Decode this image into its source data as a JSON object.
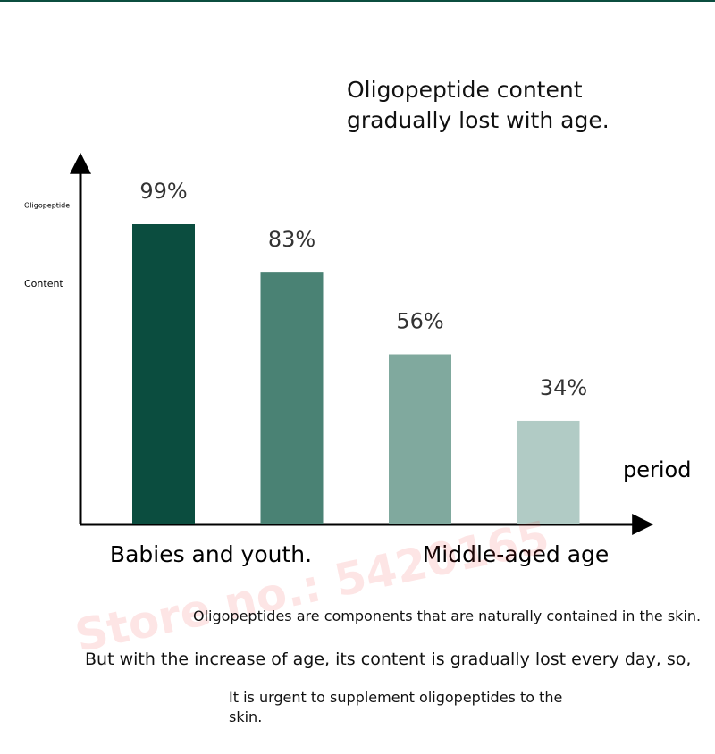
{
  "chart_data": {
    "type": "bar",
    "title": [
      "Oligopeptide content",
      "gradually lost with age."
    ],
    "y_label": [
      "Oligopeptide",
      "Content"
    ],
    "x_label": "period",
    "axis_annotations": [
      "Babies and youth.",
      "Middle-aged age"
    ],
    "values": [
      99,
      83,
      56,
      34
    ],
    "value_labels": [
      "99%",
      "83%",
      "56%",
      "34%"
    ],
    "colors": [
      "#0b4d3f",
      "#4a8274",
      "#80a99e",
      "#b1cbc5"
    ],
    "watermark": "Store no.: 5420165",
    "notes": [
      "Oligopeptides are components that are naturally contained in the skin.",
      "But with the increase of age, its content is gradually lost every day, so,",
      "It is urgent to supplement oligopeptides to the skin."
    ]
  }
}
